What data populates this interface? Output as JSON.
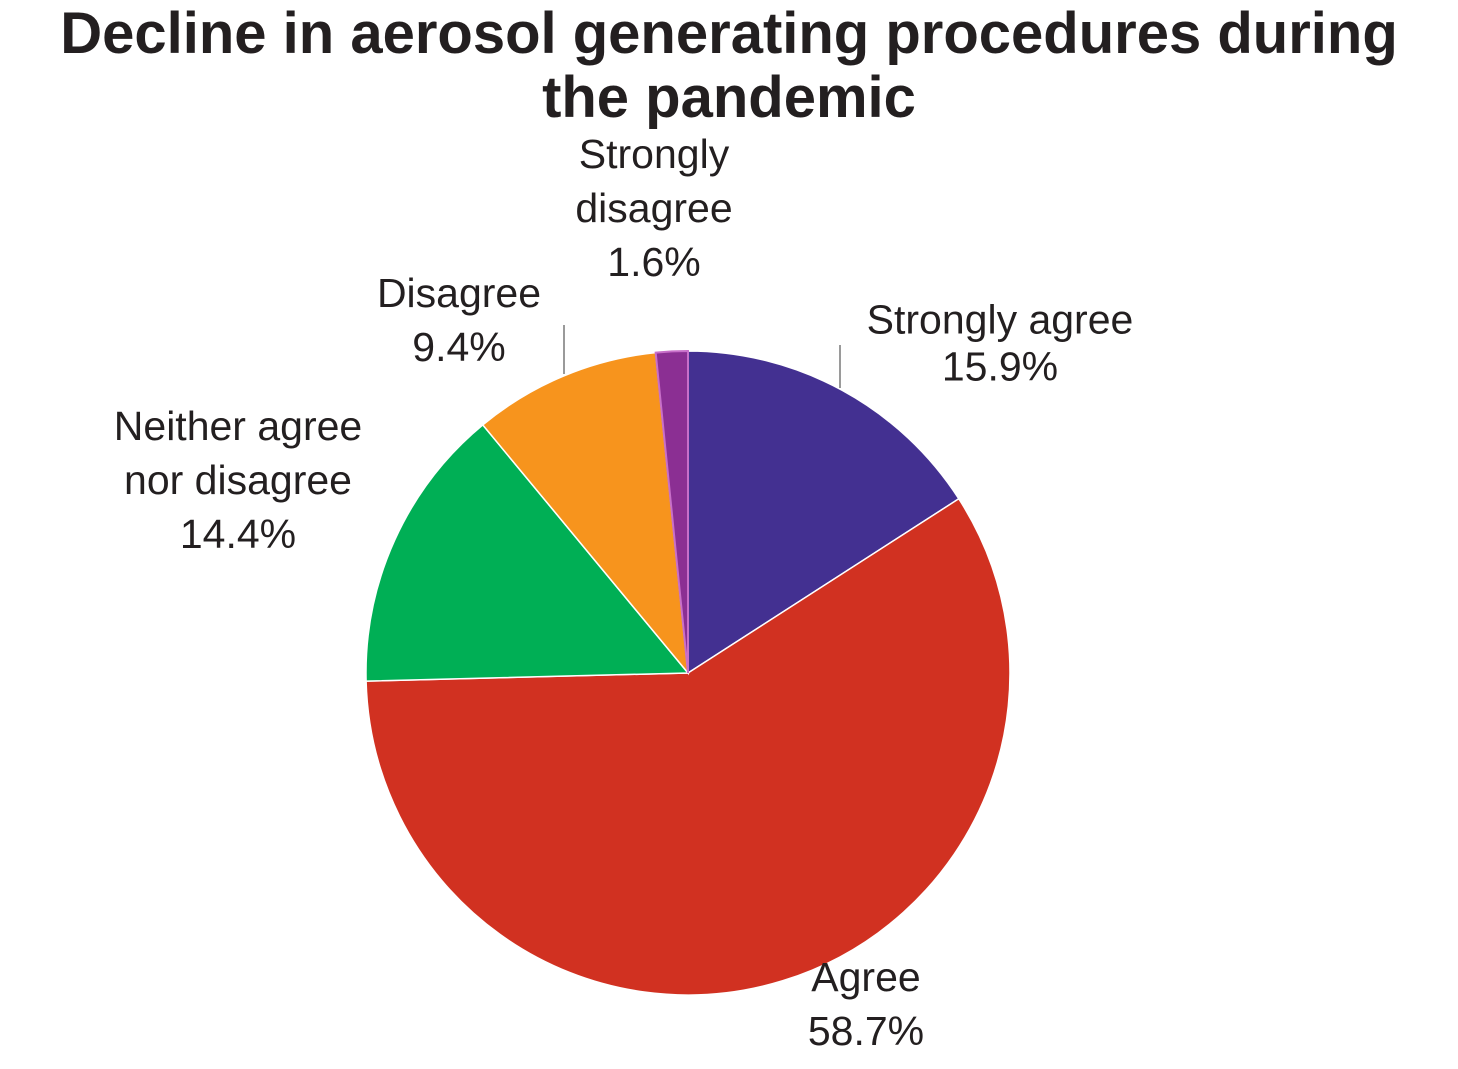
{
  "chart_data": {
    "type": "pie",
    "title": "Decline in aerosol generating procedures during the pandemic",
    "title_lines": [
      "Decline in aerosol generating procedures during",
      "the pandemic"
    ],
    "slices": [
      {
        "label": "Strongly agree",
        "value": 15.9,
        "value_text": "15.9%",
        "color": "#433091",
        "label_lines": [
          "Strongly agree",
          "15.9%"
        ]
      },
      {
        "label": "Agree",
        "value": 58.7,
        "value_text": "58.7%",
        "color": "#d13121",
        "label_lines": [
          "Agree",
          "58.7%"
        ]
      },
      {
        "label": "Neither agree nor disagree",
        "value": 14.4,
        "value_text": "14.4%",
        "color": "#00af55",
        "label_lines": [
          "Neither agree",
          "nor disagree",
          "14.4%"
        ]
      },
      {
        "label": "Disagree",
        "value": 9.4,
        "value_text": "9.4%",
        "color": "#f7941d",
        "label_lines": [
          "Disagree",
          "9.4%"
        ]
      },
      {
        "label": "Strongly disagree",
        "value": 1.6,
        "value_text": "1.6%",
        "color": "#8b2f93",
        "label_lines": [
          "Strongly",
          "disagree",
          "1.6%"
        ]
      }
    ],
    "start_angle": "12 o'clock, clockwise",
    "legend": "none"
  }
}
